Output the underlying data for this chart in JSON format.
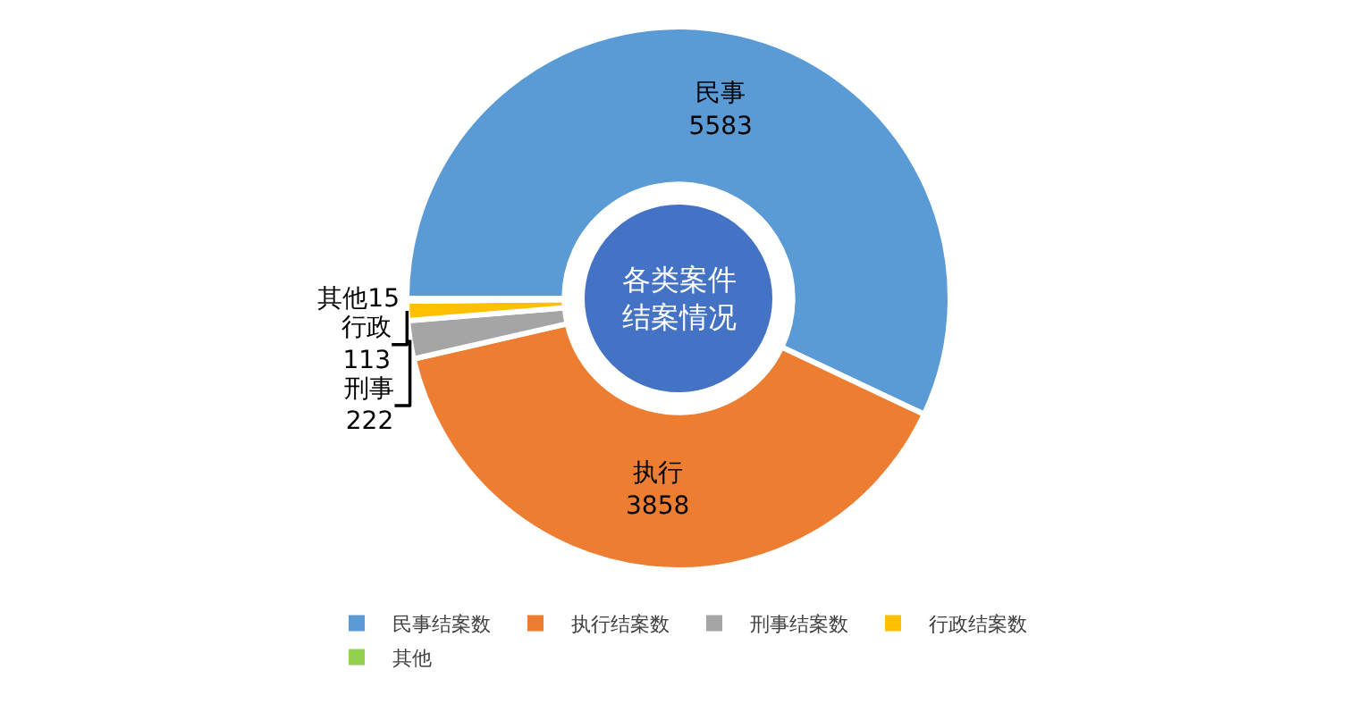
{
  "chart_data": {
    "type": "donut",
    "title": "各类案件结案情况",
    "categories": [
      "民事结案数",
      "执行结案数",
      "刑事结案数",
      "行政结案数",
      "其他"
    ],
    "values": [
      5583,
      3858,
      222,
      113,
      15
    ],
    "colors": [
      "#5b9bd5",
      "#ed7d31",
      "#a5a5a5",
      "#ffc000",
      "#92d050"
    ],
    "value_labels": [
      "民事\n5583",
      "执行\n3858",
      "刑事\n222",
      "行政\n113",
      "其他15"
    ],
    "legend": "bottom"
  }
}
